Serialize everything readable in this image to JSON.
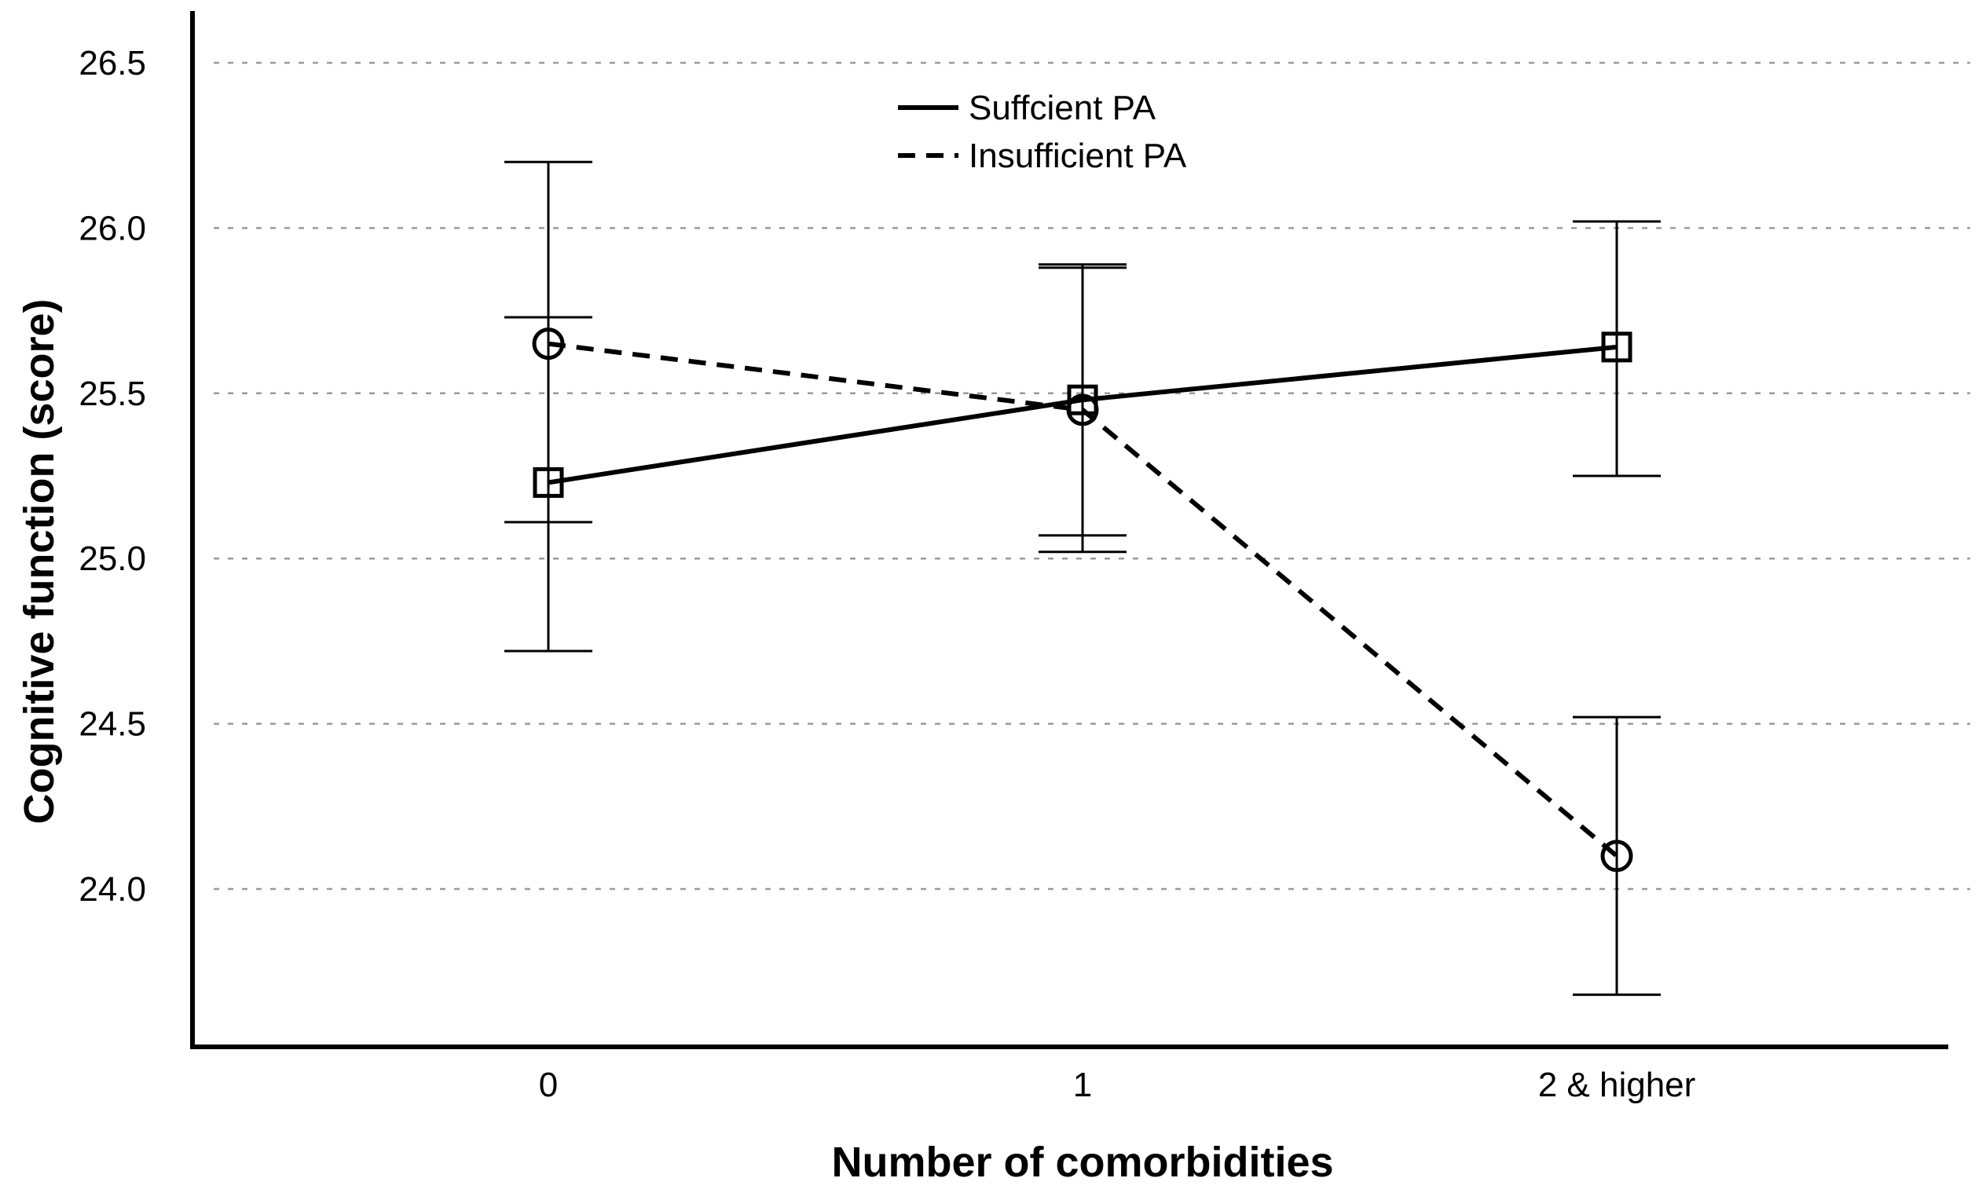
{
  "chart_data": {
    "type": "line",
    "xlabel": "Number of comorbidities",
    "ylabel": "Cognitive function (score)",
    "categories": [
      "0",
      "1",
      "2 & higher"
    ],
    "ylim": [
      23.55,
      26.65
    ],
    "yticks": [
      24.0,
      24.5,
      25.0,
      25.5,
      26.0,
      26.5
    ],
    "ytick_labels": [
      "24.0",
      "24.5",
      "25.0",
      "25.5",
      "26.0",
      "26.5"
    ],
    "grid": "horizontal-dashed",
    "legend_position": "top-center",
    "series": [
      {
        "name": "Suffcient PA",
        "line_style": "solid",
        "marker": "square",
        "values": [
          25.23,
          25.48,
          25.64
        ],
        "ci_low": [
          25.11,
          25.07,
          25.25
        ],
        "ci_high": [
          25.73,
          25.89,
          26.02
        ]
      },
      {
        "name": "Insufficient PA",
        "line_style": "dashed",
        "marker": "circle",
        "values": [
          25.65,
          25.45,
          24.1
        ],
        "ci_low": [
          24.72,
          25.02,
          23.68
        ],
        "ci_high": [
          26.2,
          25.88,
          24.52
        ]
      }
    ]
  }
}
